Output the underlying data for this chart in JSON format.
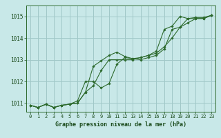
{
  "title": "Graphe pression niveau de la mer (hPa)",
  "background_color": "#c8e8e8",
  "grid_color": "#a0c8c8",
  "line_color": "#2d6a2d",
  "marker_color": "#2d6a2d",
  "xlim": [
    -0.5,
    23.5
  ],
  "ylim": [
    1010.6,
    1015.5
  ],
  "yticks": [
    1011,
    1012,
    1013,
    1014,
    1015
  ],
  "xticks": [
    0,
    1,
    2,
    3,
    4,
    5,
    6,
    7,
    8,
    9,
    10,
    11,
    12,
    13,
    14,
    15,
    16,
    17,
    18,
    19,
    20,
    21,
    22,
    23
  ],
  "series": [
    [
      1010.9,
      1010.8,
      1010.95,
      1010.8,
      1010.9,
      1010.95,
      1011.0,
      1011.5,
      1012.7,
      1012.95,
      1013.2,
      1013.35,
      1013.15,
      1013.05,
      1013.1,
      1013.2,
      1013.4,
      1014.4,
      1014.55,
      1015.0,
      1014.9,
      1014.95,
      1014.95,
      1015.05
    ],
    [
      1010.9,
      1010.8,
      1010.95,
      1010.8,
      1010.9,
      1010.95,
      1011.1,
      1012.0,
      1012.0,
      1011.7,
      1011.9,
      1012.8,
      1013.1,
      1013.05,
      1013.0,
      1013.1,
      1013.2,
      1013.5,
      1014.4,
      1014.5,
      1014.9,
      1014.9,
      1014.9,
      1015.05
    ],
    [
      1010.9,
      1010.8,
      1010.95,
      1010.8,
      1010.9,
      1010.95,
      1011.0,
      1011.5,
      1011.8,
      1012.5,
      1013.0,
      1013.0,
      1013.0,
      1013.0,
      1013.1,
      1013.2,
      1013.3,
      1013.6,
      1014.0,
      1014.5,
      1014.7,
      1014.9,
      1014.9,
      1015.05
    ]
  ]
}
